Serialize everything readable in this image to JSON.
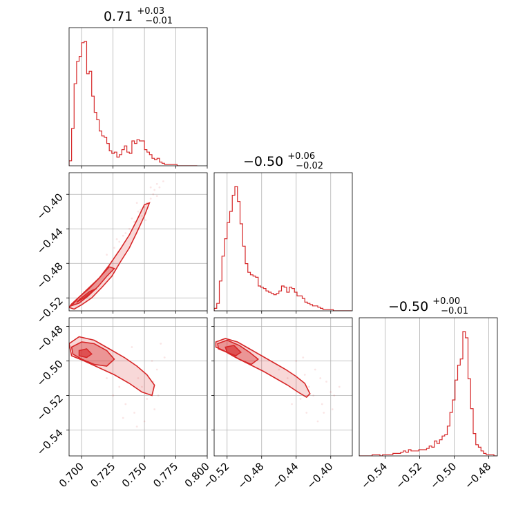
{
  "chart_data": {
    "type": "corner",
    "color": "#d62728",
    "parameters": [
      {
        "index": 0,
        "title": {
          "median": "0.71",
          "upper": "+0.03",
          "lower": "−0.01"
        },
        "range": [
          0.69,
          0.8
        ],
        "ticks": [
          0.7,
          0.725,
          0.75,
          0.775,
          0.8
        ],
        "tick_labels": [
          "0.700",
          "0.725",
          "0.750",
          "0.775",
          "0.800"
        ],
        "histogram": {
          "x": [
            0.69,
            0.692,
            0.694,
            0.696,
            0.698,
            0.7,
            0.702,
            0.704,
            0.706,
            0.708,
            0.71,
            0.712,
            0.714,
            0.716,
            0.718,
            0.72,
            0.722,
            0.724,
            0.726,
            0.728,
            0.73,
            0.732,
            0.734,
            0.736,
            0.738,
            0.74,
            0.742,
            0.744,
            0.746,
            0.748,
            0.75,
            0.752,
            0.754,
            0.756,
            0.758,
            0.76,
            0.762,
            0.764,
            0.766,
            0.768,
            0.77,
            0.772,
            0.774,
            0.776,
            0.778,
            0.78,
            0.79
          ],
          "counts": [
            4,
            30,
            66,
            84,
            88,
            99,
            100,
            74,
            76,
            56,
            43,
            37,
            28,
            24,
            23,
            18,
            12,
            10,
            11,
            7,
            9,
            13,
            16,
            11,
            10,
            20,
            18,
            21,
            20,
            20,
            13,
            11,
            9,
            6,
            5,
            6,
            3,
            2,
            1,
            1,
            1,
            1,
            1,
            0,
            0,
            0,
            0
          ]
        }
      },
      {
        "index": 1,
        "title": {
          "median": "−0.50",
          "upper": "+0.06",
          "lower": "−0.02"
        },
        "range": [
          -0.535,
          -0.375
        ],
        "ticks": [
          -0.52,
          -0.48,
          -0.44,
          -0.4
        ],
        "tick_labels": [
          "−0.52",
          "−0.48",
          "−0.44",
          "−0.40"
        ],
        "histogram": {
          "x": [
            -0.535,
            -0.532,
            -0.529,
            -0.526,
            -0.523,
            -0.52,
            -0.517,
            -0.514,
            -0.511,
            -0.508,
            -0.505,
            -0.502,
            -0.499,
            -0.496,
            -0.493,
            -0.49,
            -0.487,
            -0.484,
            -0.481,
            -0.478,
            -0.475,
            -0.472,
            -0.469,
            -0.466,
            -0.463,
            -0.46,
            -0.457,
            -0.454,
            -0.451,
            -0.448,
            -0.445,
            -0.442,
            -0.439,
            -0.436,
            -0.433,
            -0.43,
            -0.427,
            -0.424,
            -0.421,
            -0.418,
            -0.415,
            -0.412,
            -0.409,
            -0.406,
            -0.403,
            -0.4,
            -0.397,
            -0.394,
            -0.391,
            -0.388,
            -0.385,
            -0.382,
            -0.379
          ],
          "counts": [
            2,
            6,
            24,
            44,
            58,
            71,
            80,
            93,
            100,
            88,
            70,
            52,
            38,
            31,
            29,
            28,
            27,
            20,
            19,
            18,
            16,
            15,
            14,
            13,
            14,
            16,
            20,
            19,
            15,
            19,
            18,
            15,
            12,
            12,
            10,
            7,
            6,
            5,
            4,
            4,
            3,
            2,
            1,
            1,
            1,
            1,
            0,
            0,
            0,
            0,
            0,
            0,
            0
          ]
        }
      },
      {
        "index": 2,
        "title": {
          "median": "−0.50",
          "upper": "+0.00",
          "lower": "−0.01"
        },
        "range": [
          -0.555,
          -0.475
        ],
        "ticks": [
          -0.54,
          -0.52,
          -0.5,
          -0.48
        ],
        "tick_labels": [
          "−0.54",
          "−0.52",
          "−0.50",
          "−0.48"
        ],
        "histogram": {
          "x": [
            -0.555,
            -0.5535,
            -0.552,
            -0.5505,
            -0.549,
            -0.5475,
            -0.546,
            -0.5445,
            -0.543,
            -0.5415,
            -0.54,
            -0.5385,
            -0.537,
            -0.5355,
            -0.534,
            -0.5325,
            -0.531,
            -0.5295,
            -0.528,
            -0.5265,
            -0.525,
            -0.5235,
            -0.522,
            -0.5205,
            -0.519,
            -0.5175,
            -0.516,
            -0.5145,
            -0.513,
            -0.5115,
            -0.51,
            -0.5085,
            -0.507,
            -0.5055,
            -0.504,
            -0.5025,
            -0.501,
            -0.4995,
            -0.498,
            -0.4965,
            -0.495,
            -0.4935,
            -0.492,
            -0.4905,
            -0.489,
            -0.4875,
            -0.486,
            -0.4845,
            -0.483,
            -0.4815,
            -0.48,
            -0.4785,
            -0.477
          ],
          "counts": [
            0,
            0,
            0,
            0,
            0,
            1,
            1,
            1,
            0,
            1,
            1,
            1,
            1,
            2,
            2,
            2,
            3,
            4,
            3,
            5,
            4,
            4,
            4,
            5,
            5,
            5,
            6,
            8,
            7,
            12,
            10,
            13,
            16,
            17,
            24,
            35,
            45,
            61,
            73,
            78,
            100,
            95,
            62,
            38,
            18,
            9,
            7,
            4,
            2,
            1,
            1,
            1,
            0
          ]
        }
      }
    ],
    "pairs": [
      {
        "x_param": 0,
        "y_param": 1,
        "samples": [
          [
            0.735,
            -0.445
          ],
          [
            0.742,
            -0.432
          ],
          [
            0.748,
            -0.425
          ],
          [
            0.752,
            -0.41
          ],
          [
            0.755,
            -0.405
          ],
          [
            0.758,
            -0.395
          ],
          [
            0.76,
            -0.388
          ],
          [
            0.745,
            -0.42
          ],
          [
            0.738,
            -0.44
          ],
          [
            0.73,
            -0.455
          ],
          [
            0.75,
            -0.415
          ],
          [
            0.762,
            -0.392
          ],
          [
            0.726,
            -0.462
          ],
          [
            0.72,
            -0.47
          ],
          [
            0.757,
            -0.4
          ],
          [
            0.74,
            -0.428
          ],
          [
            0.747,
            -0.418
          ],
          [
            0.733,
            -0.448
          ],
          [
            0.765,
            -0.385
          ],
          [
            0.755,
            -0.392
          ],
          [
            0.744,
            -0.41
          ],
          [
            0.728,
            -0.452
          ],
          [
            0.751,
            -0.43
          ],
          [
            0.76,
            -0.402
          ]
        ],
        "contours": [
          {
            "level": "outer",
            "x": [
              0.69,
              0.694,
              0.7,
              0.708,
              0.716,
              0.724,
              0.731,
              0.738,
              0.744,
              0.75,
              0.754,
              0.75,
              0.744,
              0.738,
              0.731,
              0.722,
              0.714,
              0.706,
              0.698,
              0.692
            ],
            "y": [
              -0.531,
              -0.533,
              -0.528,
              -0.52,
              -0.508,
              -0.495,
              -0.478,
              -0.462,
              -0.444,
              -0.425,
              -0.41,
              -0.412,
              -0.43,
              -0.447,
              -0.463,
              -0.482,
              -0.497,
              -0.509,
              -0.519,
              -0.527
            ]
          },
          {
            "level": "middle",
            "x": [
              0.692,
              0.698,
              0.705,
              0.713,
              0.72,
              0.726,
              0.722,
              0.714,
              0.706,
              0.698
            ],
            "y": [
              -0.529,
              -0.526,
              -0.518,
              -0.507,
              -0.495,
              -0.486,
              -0.484,
              -0.497,
              -0.508,
              -0.519
            ]
          },
          {
            "level": "inner",
            "x": [
              0.696,
              0.702,
              0.709,
              0.712,
              0.706,
              0.699
            ],
            "y": [
              -0.525,
              -0.52,
              -0.512,
              -0.509,
              -0.513,
              -0.521
            ]
          }
        ]
      },
      {
        "x_param": 0,
        "y_param": 2,
        "samples": [
          [
            0.74,
            -0.492
          ],
          [
            0.745,
            -0.51
          ],
          [
            0.748,
            -0.515
          ],
          [
            0.752,
            -0.522
          ],
          [
            0.756,
            -0.5
          ],
          [
            0.76,
            -0.505
          ],
          [
            0.735,
            -0.525
          ],
          [
            0.742,
            -0.53
          ],
          [
            0.758,
            -0.528
          ],
          [
            0.763,
            -0.49
          ],
          [
            0.73,
            -0.515
          ],
          [
            0.725,
            -0.52
          ],
          [
            0.75,
            -0.535
          ],
          [
            0.744,
            -0.538
          ],
          [
            0.738,
            -0.5
          ],
          [
            0.757,
            -0.512
          ],
          [
            0.766,
            -0.498
          ],
          [
            0.72,
            -0.51
          ],
          [
            0.761,
            -0.52
          ],
          [
            0.733,
            -0.533
          ]
        ],
        "contours": [
          {
            "level": "outer",
            "x": [
              0.69,
              0.698,
              0.71,
              0.722,
              0.734,
              0.744,
              0.752,
              0.758,
              0.756,
              0.748,
              0.738,
              0.726,
              0.714,
              0.702,
              0.692
            ],
            "y": [
              -0.49,
              -0.486,
              -0.488,
              -0.493,
              -0.498,
              -0.503,
              -0.508,
              -0.514,
              -0.52,
              -0.518,
              -0.513,
              -0.508,
              -0.504,
              -0.5,
              -0.497
            ]
          },
          {
            "level": "middle",
            "x": [
              0.692,
              0.7,
              0.71,
              0.72,
              0.726,
              0.72,
              0.71,
              0.7,
              0.693
            ],
            "y": [
              -0.492,
              -0.489,
              -0.49,
              -0.494,
              -0.499,
              -0.503,
              -0.502,
              -0.499,
              -0.496
            ]
          },
          {
            "level": "inner",
            "x": [
              0.698,
              0.704,
              0.708,
              0.704,
              0.698
            ],
            "y": [
              -0.494,
              -0.493,
              -0.496,
              -0.498,
              -0.497
            ]
          }
        ]
      },
      {
        "x_param": 1,
        "y_param": 2,
        "samples": [
          [
            -0.44,
            -0.5
          ],
          [
            -0.43,
            -0.508
          ],
          [
            -0.425,
            -0.515
          ],
          [
            -0.42,
            -0.52
          ],
          [
            -0.41,
            -0.525
          ],
          [
            -0.405,
            -0.512
          ],
          [
            -0.4,
            -0.518
          ],
          [
            -0.435,
            -0.522
          ],
          [
            -0.428,
            -0.53
          ],
          [
            -0.415,
            -0.535
          ],
          [
            -0.45,
            -0.51
          ],
          [
            -0.418,
            -0.505
          ],
          [
            -0.396,
            -0.52
          ],
          [
            -0.445,
            -0.525
          ],
          [
            -0.408,
            -0.53
          ],
          [
            -0.39,
            -0.515
          ],
          [
            -0.46,
            -0.505
          ],
          [
            -0.432,
            -0.498
          ],
          [
            -0.412,
            -0.51
          ],
          [
            -0.398,
            -0.528
          ]
        ],
        "contours": [
          {
            "level": "outer",
            "x": [
              -0.533,
              -0.522,
              -0.508,
              -0.494,
              -0.48,
              -0.466,
              -0.452,
              -0.44,
              -0.43,
              -0.424,
              -0.428,
              -0.438,
              -0.45,
              -0.464,
              -0.478,
              -0.494,
              -0.51,
              -0.524,
              -0.533
            ],
            "y": [
              -0.489,
              -0.487,
              -0.489,
              -0.493,
              -0.497,
              -0.501,
              -0.505,
              -0.509,
              -0.513,
              -0.519,
              -0.521,
              -0.518,
              -0.514,
              -0.51,
              -0.506,
              -0.502,
              -0.498,
              -0.494,
              -0.492
            ]
          },
          {
            "level": "middle",
            "x": [
              -0.531,
              -0.52,
              -0.506,
              -0.494,
              -0.484,
              -0.492,
              -0.506,
              -0.52,
              -0.53
            ],
            "y": [
              -0.49,
              -0.488,
              -0.491,
              -0.495,
              -0.499,
              -0.502,
              -0.499,
              -0.495,
              -0.493
            ]
          },
          {
            "level": "inner",
            "x": [
              -0.522,
              -0.512,
              -0.504,
              -0.51,
              -0.52
            ],
            "y": [
              -0.492,
              -0.491,
              -0.495,
              -0.497,
              -0.495
            ]
          }
        ]
      }
    ]
  }
}
